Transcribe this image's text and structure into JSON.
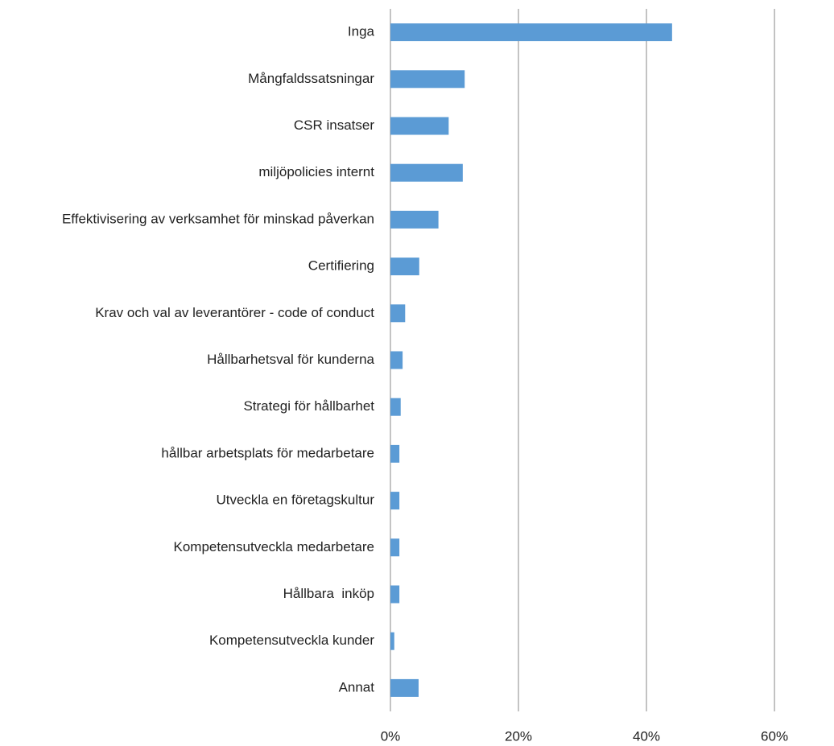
{
  "chart_data": {
    "type": "barh",
    "categories": [
      "Inga",
      "Mångfaldssatsningar",
      "CSR insatser",
      "miljöpolicies internt",
      "Effektivisering av verksamhet för minskad påverkan",
      "Certifiering",
      "Krav och val av leverantörer - code of conduct",
      "Hållbarhetsval för kunderna",
      "Strategi för hållbarhet",
      "hållbar arbetsplats för medarbetare",
      "Utveckla en företagskultur",
      "Kompetensutveckla medarbetare",
      "Hållbara  inköp",
      "Kompetensutveckla kunder",
      "Annat"
    ],
    "values": [
      44.0,
      11.6,
      9.1,
      11.3,
      7.5,
      4.5,
      2.3,
      1.9,
      1.6,
      1.4,
      1.4,
      1.4,
      1.4,
      0.6,
      4.4
    ],
    "color": "#5b9bd5",
    "xlim": [
      0,
      69.3
    ],
    "xticks": [
      {
        "value": 0,
        "label": "0%"
      },
      {
        "value": 20,
        "label": "20%"
      },
      {
        "value": 40,
        "label": "40%"
      },
      {
        "value": 60,
        "label": "60%"
      }
    ],
    "grid": true
  }
}
